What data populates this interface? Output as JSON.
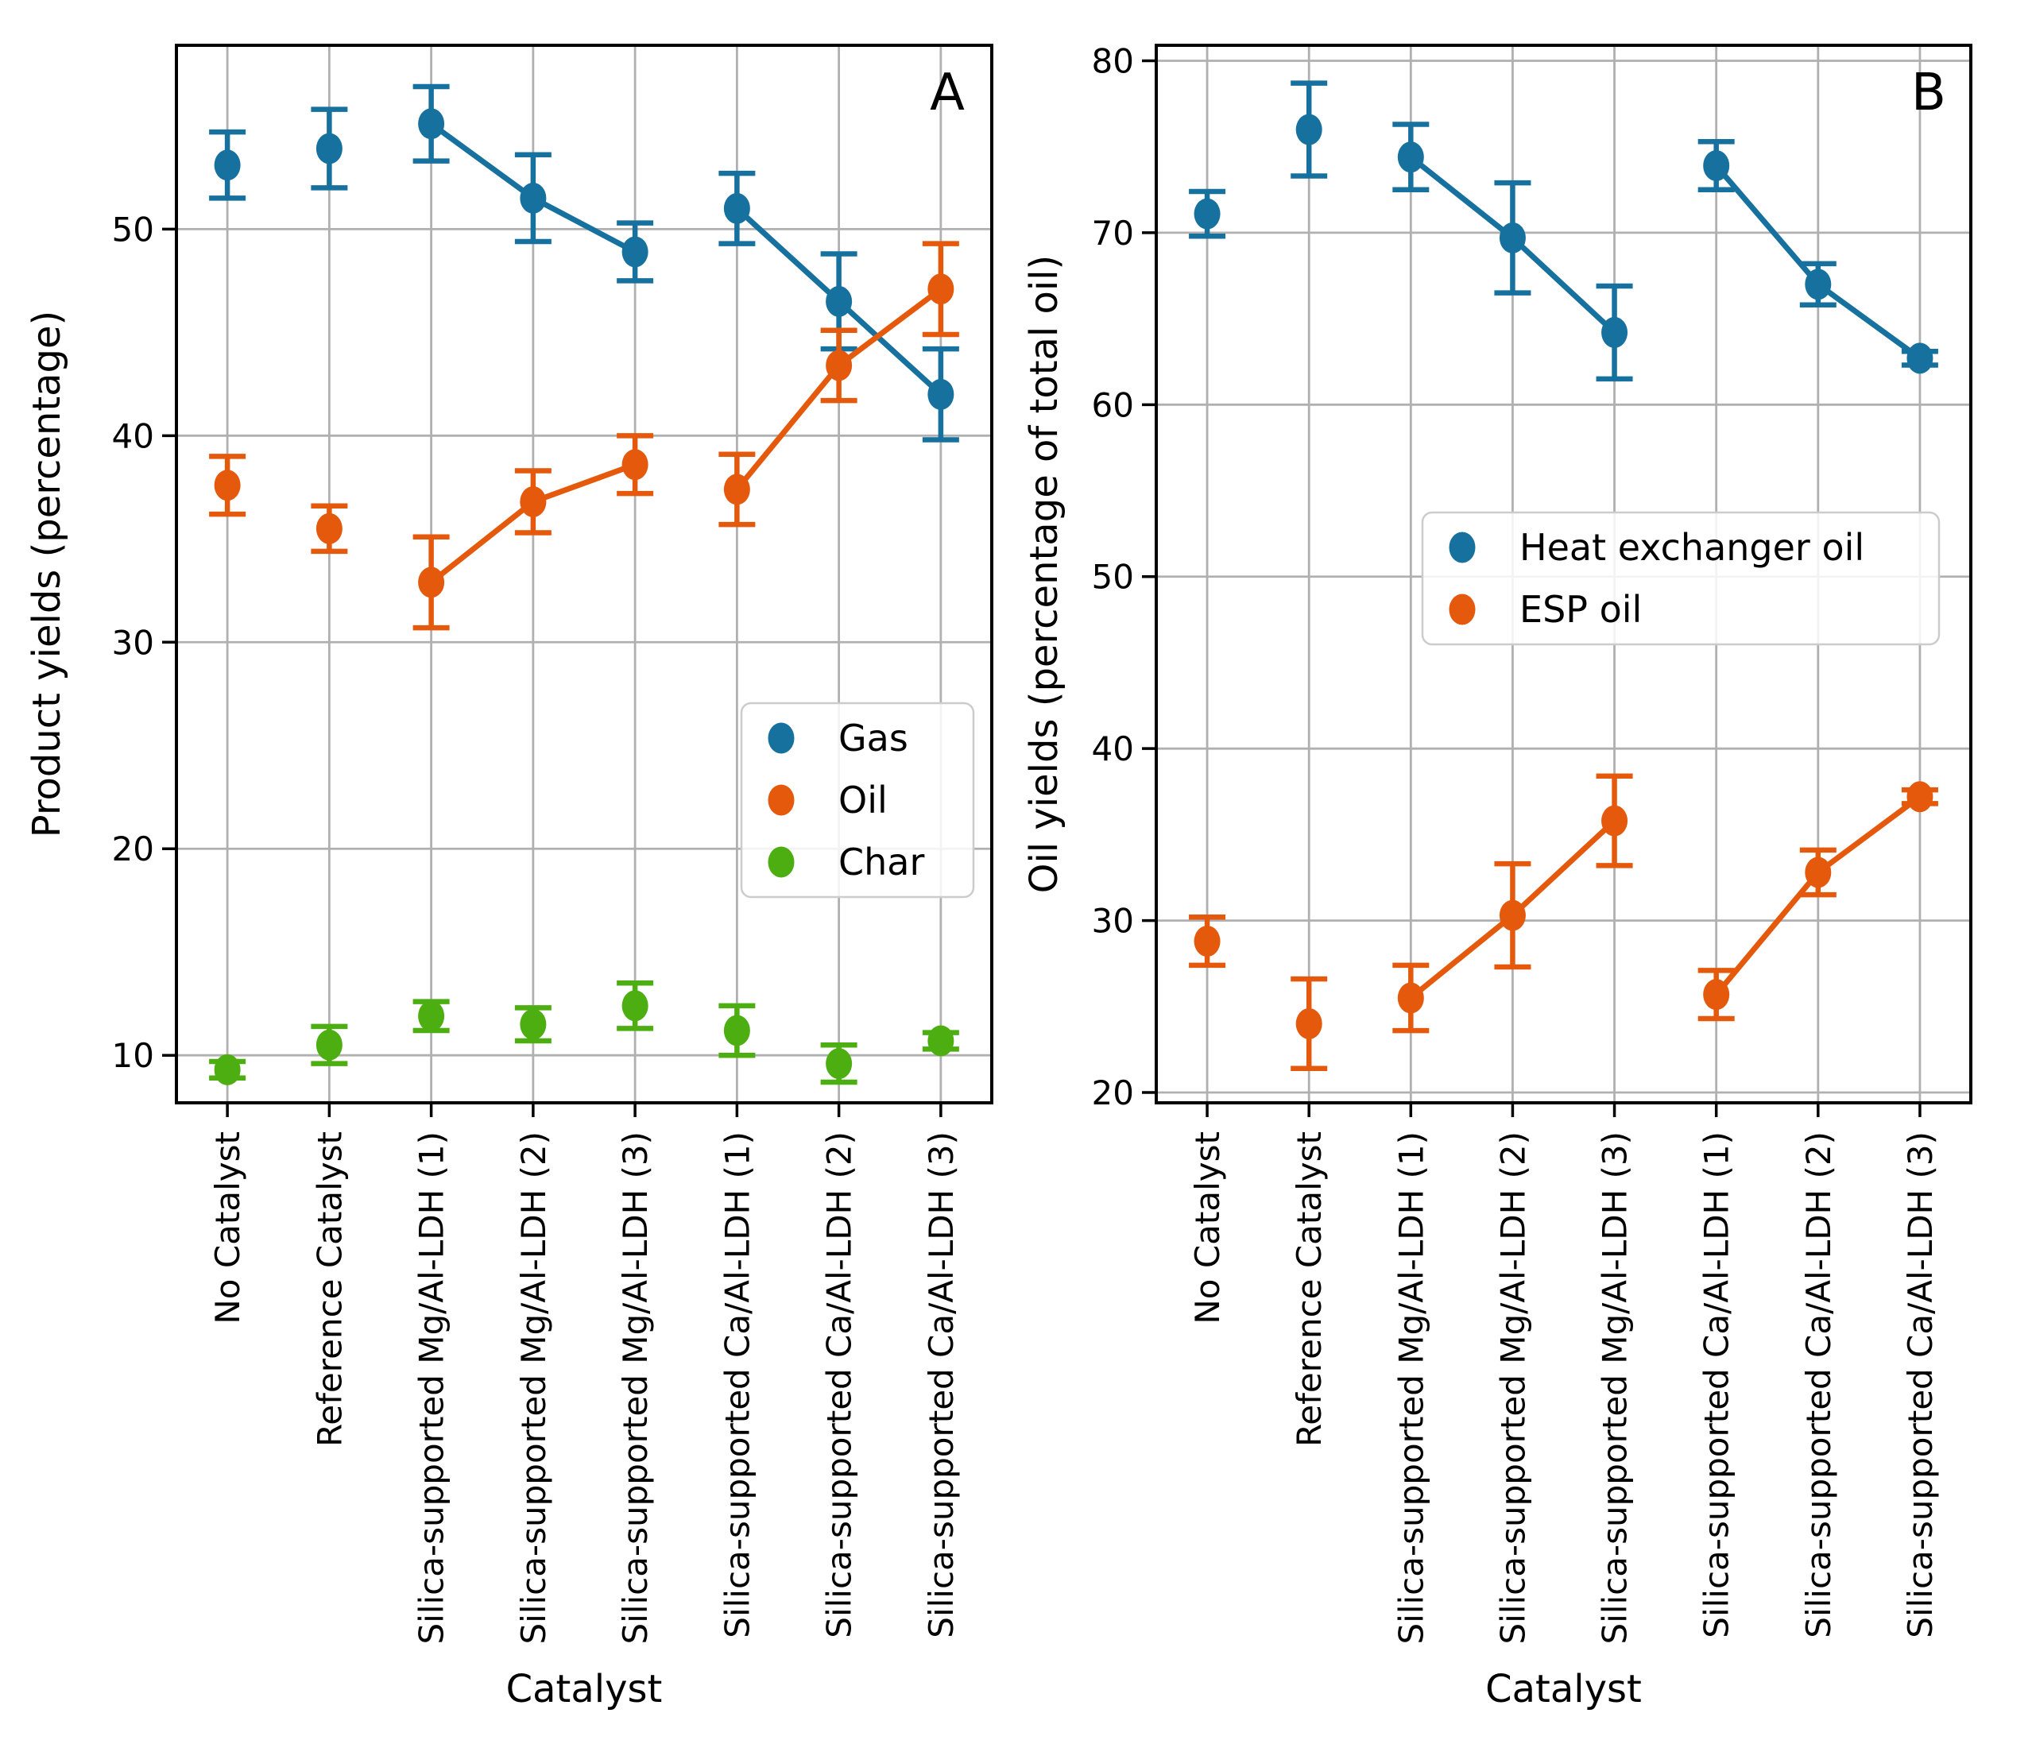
{
  "figure": {
    "background": "#ffffff",
    "grid_color": "#b0b0b0",
    "spine_color": "#000000",
    "text_color": "#000000",
    "legend_border_color": "#cccccc"
  },
  "chart_data": [
    {
      "type": "scatter",
      "panel_label": "A",
      "xlabel": "Catalyst",
      "ylabel": "Product yields (percentage)",
      "categories": [
        "No Catalyst",
        "Reference Catalyst",
        "Silica-supported Mg/Al-LDH (1)",
        "Silica-supported Mg/Al-LDH (2)",
        "Silica-supported Mg/Al-LDH (3)",
        "Silica-supported Ca/Al-LDH (1)",
        "Silica-supported Ca/Al-LDH (2)",
        "Silica-supported Ca/Al-LDH (3)"
      ],
      "ylim": [
        7.7,
        58.9
      ],
      "yticks": [
        10,
        20,
        30,
        40,
        50
      ],
      "grid": true,
      "legend_position": "center-right",
      "connected_groups": [
        [
          2,
          3,
          4
        ],
        [
          5,
          6,
          7
        ]
      ],
      "series": [
        {
          "name": "Gas",
          "color": "#17719f",
          "marker": "circle",
          "line": true,
          "values": [
            53.1,
            53.9,
            55.1,
            51.5,
            48.9,
            51.0,
            46.5,
            42.0
          ],
          "errors": [
            1.6,
            1.9,
            1.8,
            2.1,
            1.4,
            1.7,
            2.3,
            2.2
          ]
        },
        {
          "name": "Oil",
          "color": "#e5590c",
          "marker": "circle",
          "line": true,
          "values": [
            37.6,
            35.5,
            32.9,
            36.8,
            38.6,
            37.4,
            43.4,
            47.1
          ],
          "errors": [
            1.4,
            1.1,
            2.2,
            1.5,
            1.4,
            1.7,
            1.7,
            2.2
          ]
        },
        {
          "name": "Char",
          "color": "#4dae12",
          "marker": "circle",
          "line": false,
          "values": [
            9.3,
            10.5,
            11.9,
            11.5,
            12.4,
            11.2,
            9.6,
            10.7
          ],
          "errors": [
            0.4,
            0.9,
            0.7,
            0.8,
            1.1,
            1.2,
            0.9,
            0.4
          ]
        }
      ]
    },
    {
      "type": "scatter",
      "panel_label": "B",
      "xlabel": "Catalyst",
      "ylabel": "Oil yields (percentage of total oil)",
      "categories": [
        "No Catalyst",
        "Reference Catalyst",
        "Silica-supported Mg/Al-LDH (1)",
        "Silica-supported Mg/Al-LDH (2)",
        "Silica-supported Mg/Al-LDH (3)",
        "Silica-supported Ca/Al-LDH (1)",
        "Silica-supported Ca/Al-LDH (2)",
        "Silica-supported Ca/Al-LDH (3)"
      ],
      "ylim": [
        19.4,
        80.9
      ],
      "yticks": [
        20,
        30,
        40,
        50,
        60,
        70,
        80
      ],
      "grid": true,
      "legend_position": "center",
      "connected_groups": [
        [
          2,
          3,
          4
        ],
        [
          5,
          6,
          7
        ]
      ],
      "series": [
        {
          "name": "Heat exchanger oil",
          "color": "#17719f",
          "marker": "circle",
          "line": true,
          "values": [
            71.1,
            76.0,
            74.4,
            69.7,
            64.2,
            73.9,
            67.0,
            62.7
          ],
          "errors": [
            1.3,
            2.7,
            1.9,
            3.2,
            2.7,
            1.4,
            1.2,
            0.4
          ]
        },
        {
          "name": "ESP oil",
          "color": "#e5590c",
          "marker": "circle",
          "line": true,
          "values": [
            28.8,
            24.0,
            25.5,
            30.3,
            35.8,
            25.7,
            32.8,
            37.2
          ],
          "errors": [
            1.4,
            2.6,
            1.9,
            3.0,
            2.6,
            1.4,
            1.3,
            0.4
          ]
        }
      ]
    }
  ]
}
